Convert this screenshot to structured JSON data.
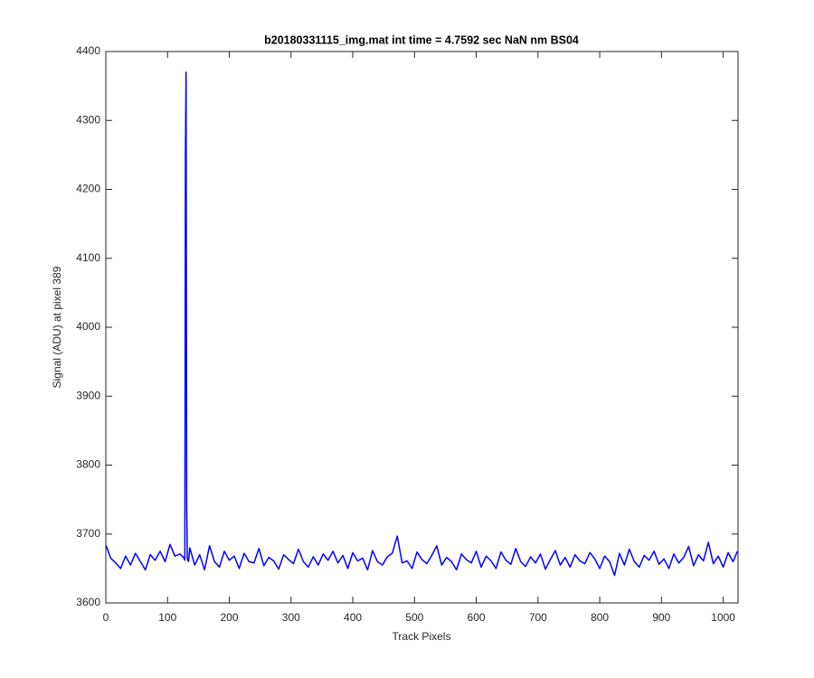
{
  "chart_data": {
    "type": "line",
    "title": "b20180331115_img.mat int time = 4.7592 sec  NaN nm BS04",
    "x_label": "Track Pixels",
    "y_label": "Signal (ADU) at pixel 389",
    "color": "#0000ff",
    "x": [
      0,
      8,
      16,
      24,
      32,
      40,
      48,
      56,
      64,
      72,
      80,
      88,
      96,
      104,
      112,
      120,
      126,
      128,
      129,
      130,
      131,
      132,
      134,
      136,
      144,
      152,
      160,
      168,
      176,
      184,
      192,
      200,
      208,
      216,
      224,
      232,
      240,
      248,
      256,
      264,
      272,
      280,
      288,
      296,
      304,
      312,
      320,
      328,
      336,
      344,
      352,
      360,
      368,
      376,
      384,
      392,
      400,
      408,
      416,
      424,
      432,
      440,
      448,
      456,
      464,
      472,
      480,
      488,
      496,
      504,
      512,
      520,
      528,
      536,
      544,
      552,
      560,
      568,
      576,
      584,
      592,
      600,
      608,
      616,
      624,
      632,
      640,
      648,
      656,
      664,
      672,
      680,
      688,
      696,
      704,
      712,
      720,
      728,
      736,
      744,
      752,
      760,
      768,
      776,
      784,
      792,
      800,
      808,
      816,
      824,
      832,
      840,
      848,
      856,
      864,
      872,
      880,
      888,
      896,
      904,
      912,
      920,
      928,
      936,
      944,
      952,
      960,
      968,
      976,
      984,
      992,
      1000,
      1008,
      1016,
      1023
    ],
    "values": [
      3684,
      3665,
      3658,
      3650,
      3668,
      3655,
      3672,
      3660,
      3648,
      3670,
      3662,
      3675,
      3660,
      3685,
      3668,
      3671,
      3666,
      3662,
      4254,
      4370,
      3745,
      3664,
      3660,
      3680,
      3655,
      3670,
      3648,
      3683,
      3660,
      3652,
      3675,
      3662,
      3668,
      3650,
      3672,
      3660,
      3658,
      3679,
      3654,
      3666,
      3661,
      3649,
      3670,
      3663,
      3657,
      3678,
      3660,
      3652,
      3667,
      3655,
      3671,
      3662,
      3675,
      3658,
      3669,
      3650,
      3673,
      3661,
      3665,
      3648,
      3676,
      3660,
      3655,
      3667,
      3672,
      3697,
      3658,
      3661,
      3650,
      3674,
      3663,
      3657,
      3669,
      3683,
      3655,
      3666,
      3660,
      3648,
      3671,
      3663,
      3658,
      3675,
      3652,
      3668,
      3661,
      3650,
      3674,
      3662,
      3656,
      3679,
      3660,
      3653,
      3667,
      3658,
      3671,
      3649,
      3663,
      3676,
      3655,
      3666,
      3652,
      3670,
      3661,
      3657,
      3673,
      3664,
      3650,
      3668,
      3660,
      3640,
      3672,
      3655,
      3678,
      3660,
      3652,
      3669,
      3662,
      3675,
      3656,
      3664,
      3650,
      3671,
      3658,
      3666,
      3682,
      3654,
      3670,
      3661,
      3688,
      3657,
      3668,
      3652,
      3673,
      3660,
      3675
    ],
    "xlim": [
      0,
      1024
    ],
    "ylim": [
      3600,
      4400
    ],
    "xticks": [
      0,
      100,
      200,
      300,
      400,
      500,
      600,
      700,
      800,
      900,
      1000
    ],
    "yticks": [
      3600,
      3700,
      3800,
      3900,
      4000,
      4100,
      4200,
      4300,
      4400
    ],
    "grid": false
  }
}
